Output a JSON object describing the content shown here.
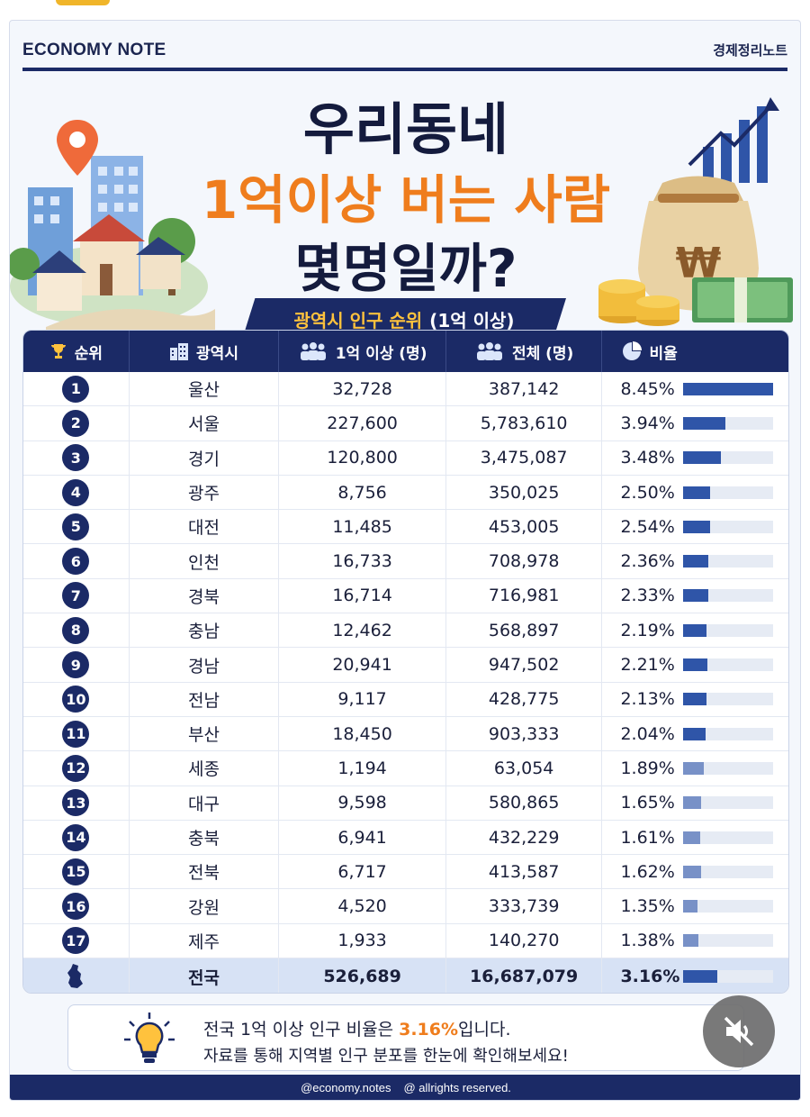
{
  "header": {
    "brand": "ECONOMY NOTE",
    "brand_kr": "경제정리노트"
  },
  "hero": {
    "line1": "우리동네",
    "line2": "1억이상 버는 사람",
    "line3": "몇명일까?",
    "ribbon_highlight": "광역시 인구 순위",
    "ribbon_rest": "(1억 이상)"
  },
  "table": {
    "headers": {
      "rank": "순위",
      "city": "광역시",
      "high": "1억 이상 (명)",
      "total": "전체 (명)",
      "ratio": "비율"
    },
    "rows": [
      {
        "rank": "1",
        "city": "울산",
        "high": "32,728",
        "total": "387,142",
        "ratio": "8.45%",
        "ratio_value": 8.45
      },
      {
        "rank": "2",
        "city": "서울",
        "high": "227,600",
        "total": "5,783,610",
        "ratio": "3.94%",
        "ratio_value": 3.94
      },
      {
        "rank": "3",
        "city": "경기",
        "high": "120,800",
        "total": "3,475,087",
        "ratio": "3.48%",
        "ratio_value": 3.48
      },
      {
        "rank": "4",
        "city": "광주",
        "high": "8,756",
        "total": "350,025",
        "ratio": "2.50%",
        "ratio_value": 2.5
      },
      {
        "rank": "5",
        "city": "대전",
        "high": "11,485",
        "total": "453,005",
        "ratio": "2.54%",
        "ratio_value": 2.54
      },
      {
        "rank": "6",
        "city": "인천",
        "high": "16,733",
        "total": "708,978",
        "ratio": "2.36%",
        "ratio_value": 2.36
      },
      {
        "rank": "7",
        "city": "경북",
        "high": "16,714",
        "total": "716,981",
        "ratio": "2.33%",
        "ratio_value": 2.33
      },
      {
        "rank": "8",
        "city": "충남",
        "high": "12,462",
        "total": "568,897",
        "ratio": "2.19%",
        "ratio_value": 2.19
      },
      {
        "rank": "9",
        "city": "경남",
        "high": "20,941",
        "total": "947,502",
        "ratio": "2.21%",
        "ratio_value": 2.21
      },
      {
        "rank": "10",
        "city": "전남",
        "high": "9,117",
        "total": "428,775",
        "ratio": "2.13%",
        "ratio_value": 2.13
      },
      {
        "rank": "11",
        "city": "부산",
        "high": "18,450",
        "total": "903,333",
        "ratio": "2.04%",
        "ratio_value": 2.04
      },
      {
        "rank": "12",
        "city": "세종",
        "high": "1,194",
        "total": "63,054",
        "ratio": "1.89%",
        "ratio_value": 1.89
      },
      {
        "rank": "13",
        "city": "대구",
        "high": "9,598",
        "total": "580,865",
        "ratio": "1.65%",
        "ratio_value": 1.65
      },
      {
        "rank": "14",
        "city": "충북",
        "high": "6,941",
        "total": "432,229",
        "ratio": "1.61%",
        "ratio_value": 1.61
      },
      {
        "rank": "15",
        "city": "전북",
        "high": "6,717",
        "total": "413,587",
        "ratio": "1.62%",
        "ratio_value": 1.62
      },
      {
        "rank": "16",
        "city": "강원",
        "high": "4,520",
        "total": "333,739",
        "ratio": "1.35%",
        "ratio_value": 1.35
      },
      {
        "rank": "17",
        "city": "제주",
        "high": "1,933",
        "total": "140,270",
        "ratio": "1.38%",
        "ratio_value": 1.38
      }
    ],
    "total_row": {
      "city": "전국",
      "high": "526,689",
      "total": "16,687,079",
      "ratio": "3.16%",
      "ratio_value": 3.16
    },
    "bar_max": 8.45,
    "bar_color": "#2f55a8"
  },
  "note": {
    "line1_prefix": "전국 1억 이상 인구 비율은",
    "line1_pct": "3.16%",
    "line1_suffix": "입니다.",
    "line2": "자료를 통해 지역별 인구 분포를 한눈에 확인해보세요!"
  },
  "footer": {
    "handle": "@economy.notes",
    "rights": "@ allrights reserved."
  },
  "colors": {
    "navy": "#1b2a66",
    "orange": "#ef7d1d",
    "gold": "#ffc23d"
  },
  "icons": [
    "location-pin-icon",
    "trophy-icon",
    "building-icon",
    "people-icon",
    "pie-chart-icon",
    "lightbulb-icon",
    "mute-icon",
    "korea-map-icon"
  ]
}
